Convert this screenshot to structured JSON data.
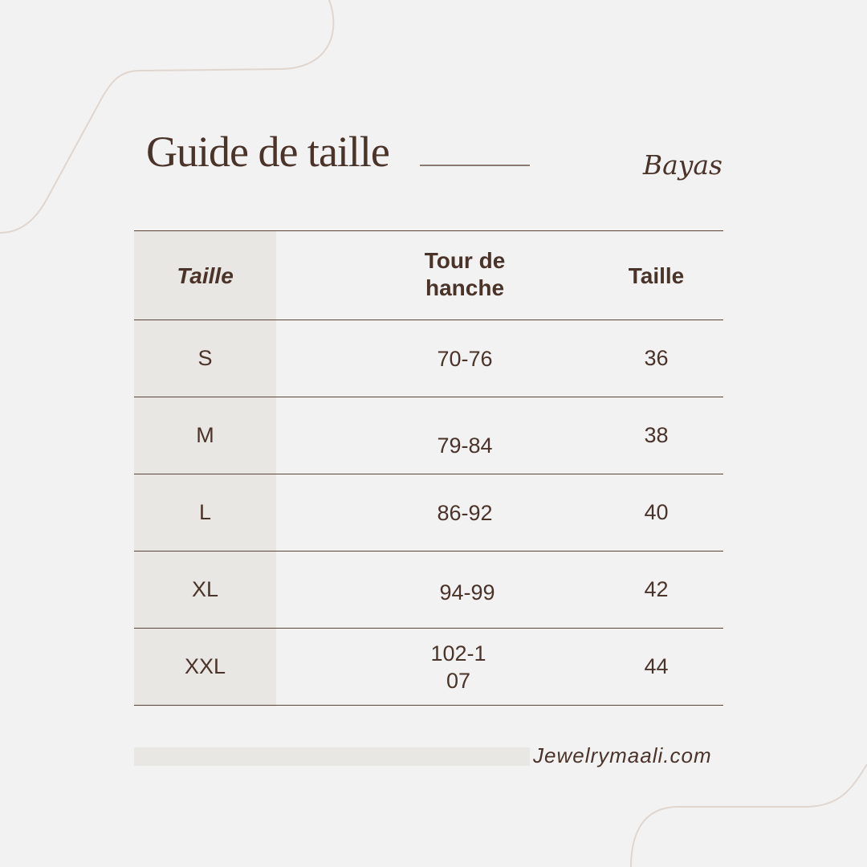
{
  "header": {
    "title": "Guide de taille",
    "brand": "Bayas"
  },
  "table": {
    "columns": [
      "Taille",
      "Tour de hanche",
      "Taille"
    ],
    "rows": [
      {
        "size": "S",
        "hip": "70-76",
        "eu": "36"
      },
      {
        "size": "M",
        "hip": "79-84",
        "eu": "38"
      },
      {
        "size": "L",
        "hip": "86-92",
        "eu": "40"
      },
      {
        "size": "XL",
        "hip": "94-99",
        "eu": "42"
      },
      {
        "size": "XXL",
        "hip": "102-107",
        "eu": "44"
      }
    ]
  },
  "footer": {
    "website": "Jewelrymaali.com"
  },
  "colors": {
    "background": "#f2f2f2",
    "text": "#4a3328",
    "accent_column": "#e9e7e3"
  }
}
